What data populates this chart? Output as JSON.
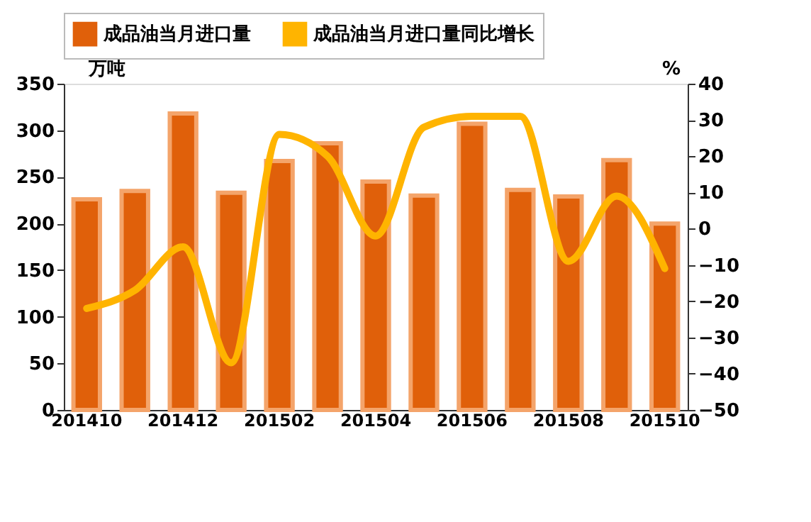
{
  "chart_data": {
    "type": "bar",
    "categories": [
      "201410",
      null,
      "201412",
      null,
      "201502",
      null,
      "201504",
      null,
      "201506",
      null,
      "201508",
      null,
      "201510"
    ],
    "series": [
      {
        "name": "成品油当月进口量",
        "color": "#e0600a",
        "values": [
          226,
          235,
          318,
          233,
          267,
          286,
          245,
          230,
          307,
          236,
          229,
          268,
          200
        ]
      },
      {
        "name": "成品油当月进口量同比增长",
        "color": "#ffb400",
        "type": "line",
        "axis": "y2",
        "values": [
          -22,
          -17,
          -5,
          -37,
          26,
          20,
          -2,
          28,
          31,
          31,
          -9,
          9,
          -11
        ]
      }
    ],
    "ylabel": "万吨",
    "y2label": "%",
    "ylim": [
      0,
      350
    ],
    "yticks": [
      0,
      50,
      100,
      150,
      200,
      250,
      300,
      350
    ],
    "y2lim": [
      -50,
      40
    ],
    "y2ticks": [
      -50,
      -40,
      -30,
      -20,
      -10,
      0,
      10,
      20,
      30,
      40
    ],
    "legend": "top",
    "grid": false
  }
}
